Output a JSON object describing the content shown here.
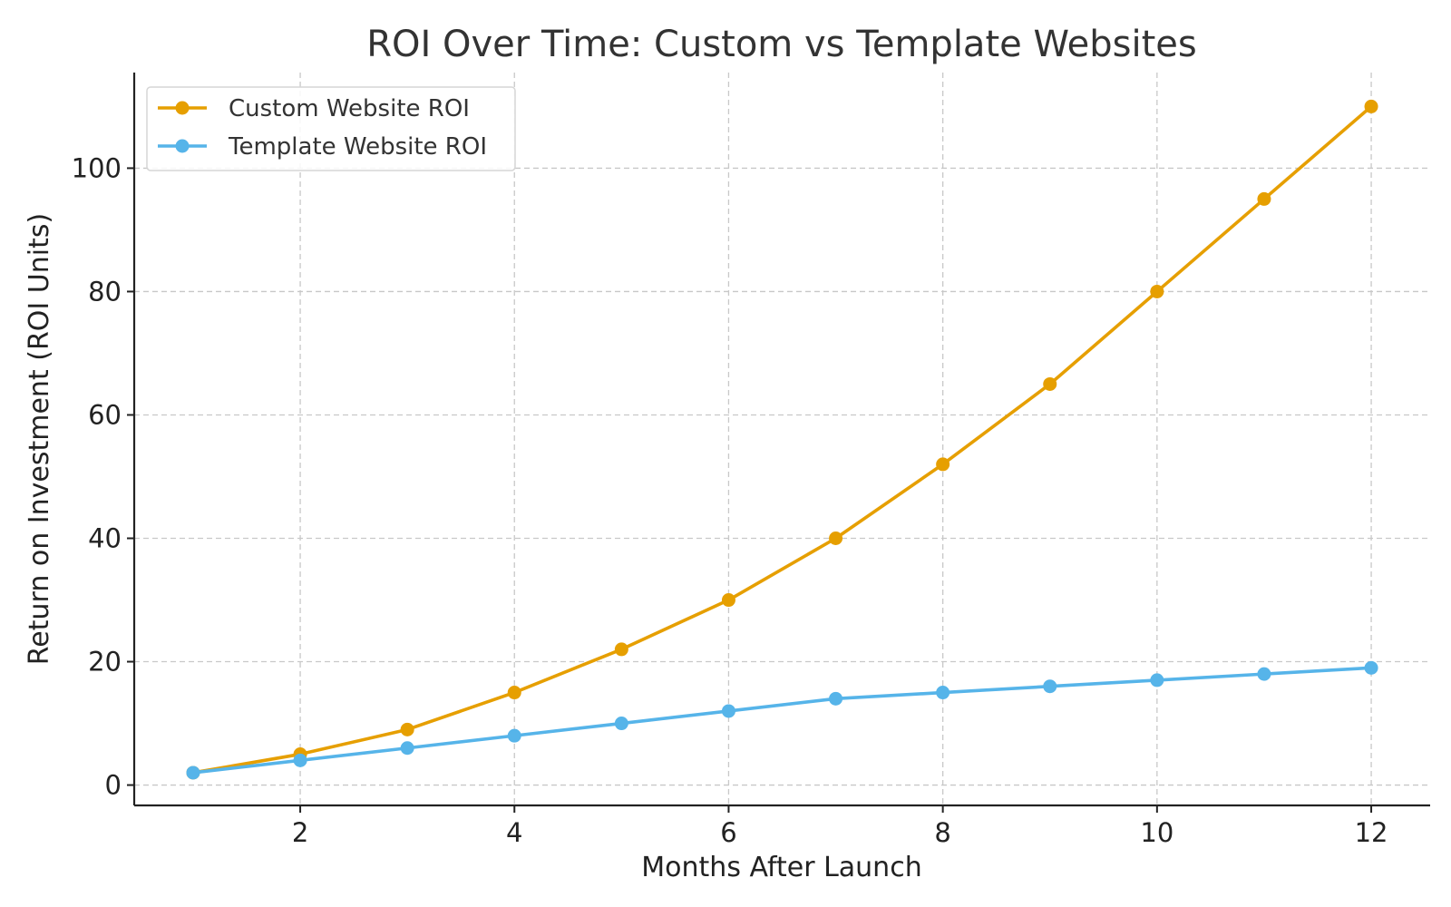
{
  "chart_data": {
    "type": "line",
    "title": "ROI Over Time: Custom vs Template Websites",
    "xlabel": "Months After Launch",
    "ylabel": "Return on Investment (ROI Units)",
    "x": [
      1,
      2,
      3,
      4,
      5,
      6,
      7,
      8,
      9,
      10,
      11,
      12
    ],
    "xlim": [
      0.45,
      12.55
    ],
    "ylim": [
      -3.3,
      115.5
    ],
    "xticks": [
      2,
      4,
      6,
      8,
      10,
      12
    ],
    "yticks": [
      0,
      20,
      40,
      60,
      80,
      100
    ],
    "xtick_labels": [
      "2",
      "4",
      "6",
      "8",
      "10",
      "12"
    ],
    "ytick_labels": [
      "0",
      "20",
      "40",
      "60",
      "80",
      "100"
    ],
    "grid": true,
    "legend_position": "top-left",
    "series": [
      {
        "name": "Custom Website ROI",
        "color": "#E69F00",
        "values": [
          2,
          5,
          9,
          15,
          22,
          30,
          40,
          52,
          65,
          80,
          95,
          110
        ]
      },
      {
        "name": "Template Website ROI",
        "color": "#56B4E9",
        "values": [
          2,
          4,
          6,
          8,
          10,
          12,
          14,
          15,
          16,
          17,
          18,
          19
        ]
      }
    ]
  }
}
